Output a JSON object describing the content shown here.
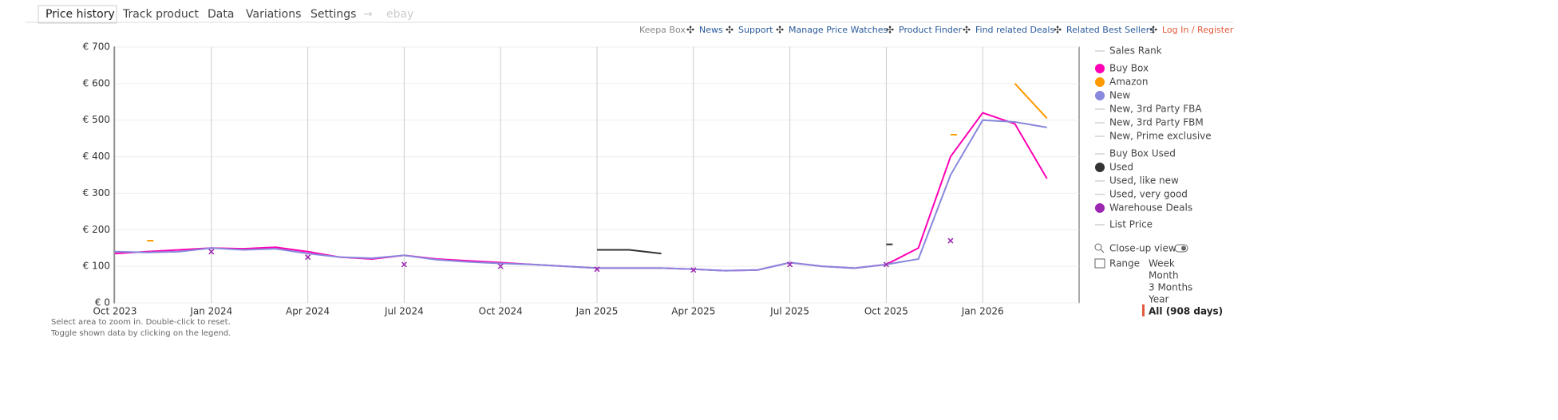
{
  "tabs": [
    "Price history",
    "Track product",
    "Data",
    "Variations",
    "Settings",
    "→",
    "ebay"
  ],
  "links": [
    "Keepa Box",
    "News",
    "Support",
    "Manage Price Watches",
    "Product Finder",
    "Find related Deals",
    "Related Best Sellers",
    "Log In / Register"
  ],
  "chart_data": {
    "type": "line",
    "x": [
      "2023-10",
      "2023-11",
      "2023-12",
      "2024-01",
      "2024-02",
      "2024-03",
      "2024-04",
      "2024-05",
      "2024-06",
      "2024-07",
      "2024-08",
      "2024-09",
      "2024-10",
      "2024-11",
      "2024-12",
      "2025-01",
      "2025-02",
      "2025-03",
      "2025-04",
      "2025-05",
      "2025-06",
      "2025-07",
      "2025-08",
      "2025-09",
      "2025-10",
      "2025-11",
      "2025-12",
      "2026-01",
      "2026-02",
      "2026-03"
    ],
    "xlim": [
      "2023-10",
      "2026-04"
    ],
    "xticks": [
      {
        "value": "2023-10",
        "label": "Oct 2023"
      },
      {
        "value": "2024-01",
        "label": "Jan 2024"
      },
      {
        "value": "2024-04",
        "label": "Apr 2024"
      },
      {
        "value": "2024-07",
        "label": "Jul 2024"
      },
      {
        "value": "2024-10",
        "label": "Oct 2024"
      },
      {
        "value": "2025-01",
        "label": "Jan 2025"
      },
      {
        "value": "2025-04",
        "label": "Apr 2025"
      },
      {
        "value": "2025-07",
        "label": "Jul 2025"
      },
      {
        "value": "2025-10",
        "label": "Oct 2025"
      },
      {
        "value": "2026-01",
        "label": "Jan 2026"
      }
    ],
    "ylim": [
      0,
      700
    ],
    "yticks": [
      {
        "value": 0,
        "label": "€ 0"
      },
      {
        "value": 100,
        "label": "€ 100"
      },
      {
        "value": 200,
        "label": "€ 200"
      },
      {
        "value": 300,
        "label": "€ 300"
      },
      {
        "value": 400,
        "label": "€ 400"
      },
      {
        "value": 500,
        "label": "€ 500"
      },
      {
        "value": 600,
        "label": "€ 600"
      },
      {
        "value": 700,
        "label": "€ 700"
      }
    ],
    "grid": true,
    "series": [
      {
        "name": "Sales Rank",
        "values": [
          null,
          null,
          null,
          null,
          null,
          null,
          null,
          null,
          null,
          null,
          null,
          null,
          null,
          null,
          null,
          null,
          null,
          null,
          null,
          null,
          null,
          null,
          null,
          null,
          null,
          null,
          null,
          null,
          null,
          null
        ]
      },
      {
        "name": "Buy Box",
        "color": "#ff00b4",
        "values": [
          135,
          140,
          145,
          150,
          148,
          152,
          140,
          125,
          120,
          130,
          120,
          115,
          110,
          105,
          100,
          95,
          95,
          95,
          92,
          88,
          90,
          110,
          100,
          95,
          105,
          150,
          400,
          520,
          490,
          340
        ]
      },
      {
        "name": "Amazon",
        "color": "#ff9900",
        "values": [
          null,
          170,
          null,
          null,
          null,
          null,
          null,
          null,
          null,
          null,
          null,
          null,
          null,
          null,
          null,
          null,
          null,
          null,
          null,
          null,
          null,
          null,
          null,
          null,
          null,
          null,
          460,
          null,
          600,
          505
        ]
      },
      {
        "name": "New",
        "color": "#8888dd",
        "values": [
          140,
          138,
          140,
          150,
          145,
          148,
          135,
          125,
          122,
          130,
          118,
          112,
          108,
          105,
          100,
          95,
          95,
          95,
          92,
          88,
          90,
          110,
          100,
          95,
          105,
          120,
          350,
          500,
          495,
          480
        ]
      },
      {
        "name": "New, 3rd Party FBA",
        "values": [
          null,
          null,
          null,
          null,
          null,
          null,
          null,
          null,
          null,
          null,
          null,
          null,
          null,
          null,
          null,
          null,
          null,
          null,
          null,
          null,
          null,
          null,
          null,
          null,
          null,
          null,
          null,
          null,
          null,
          null
        ]
      },
      {
        "name": "New, 3rd Party FBM",
        "values": [
          null,
          null,
          null,
          null,
          null,
          null,
          null,
          null,
          null,
          null,
          null,
          null,
          null,
          null,
          null,
          null,
          null,
          null,
          null,
          null,
          null,
          null,
          null,
          null,
          null,
          null,
          null,
          null,
          null,
          null
        ]
      },
      {
        "name": "New, Prime exclusive",
        "values": [
          null,
          null,
          null,
          null,
          null,
          null,
          null,
          null,
          null,
          null,
          null,
          null,
          null,
          null,
          null,
          null,
          null,
          null,
          null,
          null,
          null,
          null,
          null,
          null,
          null,
          null,
          null,
          null,
          null,
          null
        ]
      },
      {
        "name": "Buy Box Used",
        "values": [
          null,
          null,
          null,
          null,
          null,
          null,
          null,
          null,
          null,
          null,
          null,
          null,
          null,
          null,
          null,
          null,
          null,
          null,
          null,
          null,
          null,
          null,
          null,
          null,
          null,
          null,
          null,
          null,
          null,
          null
        ]
      },
      {
        "name": "Used",
        "color": "#333333",
        "values": [
          null,
          null,
          null,
          null,
          null,
          null,
          null,
          null,
          null,
          null,
          null,
          null,
          null,
          null,
          null,
          145,
          145,
          135,
          null,
          null,
          null,
          null,
          null,
          null,
          160,
          null,
          null,
          null,
          null,
          null
        ]
      },
      {
        "name": "Used, like new",
        "values": [
          null,
          null,
          null,
          null,
          null,
          null,
          null,
          null,
          null,
          null,
          null,
          null,
          null,
          null,
          null,
          null,
          null,
          null,
          null,
          null,
          null,
          null,
          null,
          null,
          null,
          null,
          null,
          null,
          null,
          null
        ]
      },
      {
        "name": "Used, very good",
        "values": [
          null,
          null,
          null,
          null,
          null,
          null,
          null,
          null,
          null,
          null,
          null,
          null,
          null,
          null,
          null,
          null,
          null,
          null,
          null,
          null,
          null,
          null,
          null,
          null,
          null,
          null,
          null,
          null,
          null,
          null
        ]
      },
      {
        "name": "Warehouse Deals",
        "color": "#9c27b0",
        "marker": "x",
        "values": [
          null,
          null,
          null,
          140,
          null,
          null,
          125,
          null,
          null,
          105,
          null,
          null,
          100,
          null,
          null,
          92,
          null,
          null,
          90,
          null,
          null,
          105,
          null,
          null,
          105,
          null,
          170,
          null,
          null,
          null
        ]
      },
      {
        "name": "List Price",
        "values": [
          null,
          null,
          null,
          null,
          null,
          null,
          null,
          null,
          null,
          null,
          null,
          null,
          null,
          null,
          null,
          null,
          null,
          null,
          null,
          null,
          null,
          null,
          null,
          null,
          null,
          null,
          null,
          null,
          null,
          null
        ]
      }
    ]
  },
  "closeup": "Close-up view",
  "range": {
    "label": "Range",
    "options": [
      "Week",
      "Month",
      "3 Months",
      "Year",
      "All (908 days)"
    ]
  },
  "notes": [
    "Select area to zoom in. Double-click to reset.",
    "Toggle shown data by clicking on the legend."
  ]
}
